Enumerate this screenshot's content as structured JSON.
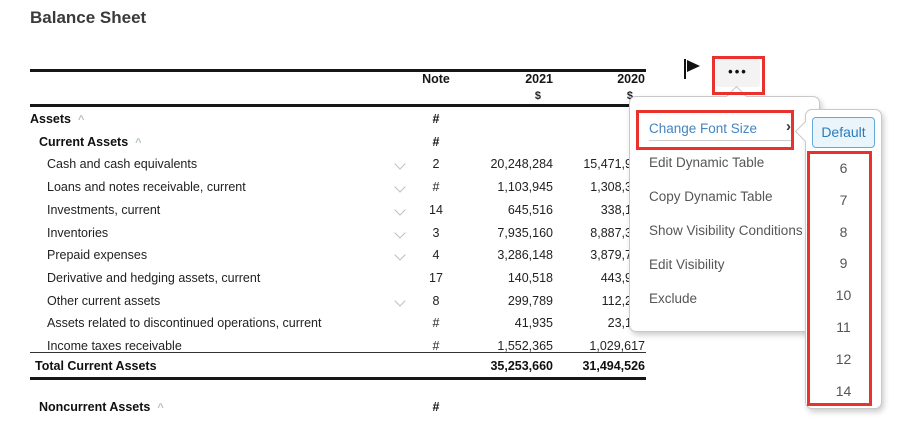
{
  "page": {
    "title": "Balance Sheet"
  },
  "toolbar": {
    "more_label": "•••"
  },
  "table": {
    "caret_glyph": "^",
    "header": {
      "note": "Note",
      "year1": "2021",
      "year2": "2020",
      "currency": "$"
    },
    "rows": [
      {
        "label": "Assets",
        "level": 0,
        "bold": true,
        "caret": true,
        "note": "#"
      },
      {
        "label": "Current Assets",
        "level": 1,
        "bold": true,
        "caret": true,
        "note": "#"
      },
      {
        "label": "Cash and cash equivalents",
        "level": 2,
        "chevron": true,
        "note": "2",
        "y2021": "20,248,284",
        "y2020": "15,471,9",
        "y2020_truncated": true
      },
      {
        "label": "Loans and notes receivable, current",
        "level": 2,
        "chevron": true,
        "note": "#",
        "y2021": "1,103,945",
        "y2020": "1,308,3",
        "y2020_truncated": true
      },
      {
        "label": "Investments, current",
        "level": 2,
        "chevron": true,
        "note": "14",
        "y2021": "645,516",
        "y2020": "338,1",
        "y2020_truncated": true
      },
      {
        "label": "Inventories",
        "level": 2,
        "chevron": true,
        "note": "3",
        "y2021": "7,935,160",
        "y2020": "8,887,3",
        "y2020_truncated": true
      },
      {
        "label": "Prepaid expenses",
        "level": 2,
        "chevron": true,
        "note": "4",
        "y2021": "3,286,148",
        "y2020": "3,879,7",
        "y2020_truncated": true
      },
      {
        "label": "Derivative and hedging assets, current",
        "level": 2,
        "chevron": false,
        "note": "17",
        "y2021": "140,518",
        "y2020": "443,9",
        "y2020_truncated": true
      },
      {
        "label": "Other current assets",
        "level": 2,
        "chevron": true,
        "note": "8",
        "y2021": "299,789",
        "y2020": "112,2",
        "y2020_truncated": true
      },
      {
        "label": "Assets related to discontinued operations, current",
        "level": 2,
        "chevron": false,
        "note": "#",
        "y2021": "41,935",
        "y2020": "23,1",
        "y2020_truncated": true
      },
      {
        "label": "Income taxes receivable",
        "level": 2,
        "chevron": false,
        "note": "#",
        "y2021": "1,552,365",
        "y2020": "1,029,617"
      },
      {
        "label": "Total Current Assets",
        "kind": "total",
        "bold": true,
        "y2021": "35,253,660",
        "y2020": "31,494,526"
      },
      {
        "label": "Noncurrent Assets",
        "kind": "noncurrent",
        "level": 1,
        "bold": true,
        "caret": true,
        "note": "#"
      }
    ]
  },
  "context_menu": {
    "items": [
      {
        "label": "Change Font Size",
        "highlighted": true,
        "submenu_arrow": "›"
      },
      {
        "label": "Edit Dynamic Table"
      },
      {
        "label": "Copy Dynamic Table"
      },
      {
        "label": "Show Visibility Conditions"
      },
      {
        "label": "Edit Visibility"
      },
      {
        "label": "Exclude"
      }
    ]
  },
  "font_size_submenu": {
    "selected": "Default",
    "sizes": [
      "6",
      "7",
      "8",
      "9",
      "10",
      "11",
      "12",
      "14"
    ]
  },
  "colors": {
    "annotation_red": "#e9322d",
    "link_blue": "#4285c3",
    "selected_border_blue": "#64a9d8",
    "selected_bg_blue": "#e9f4fb"
  }
}
